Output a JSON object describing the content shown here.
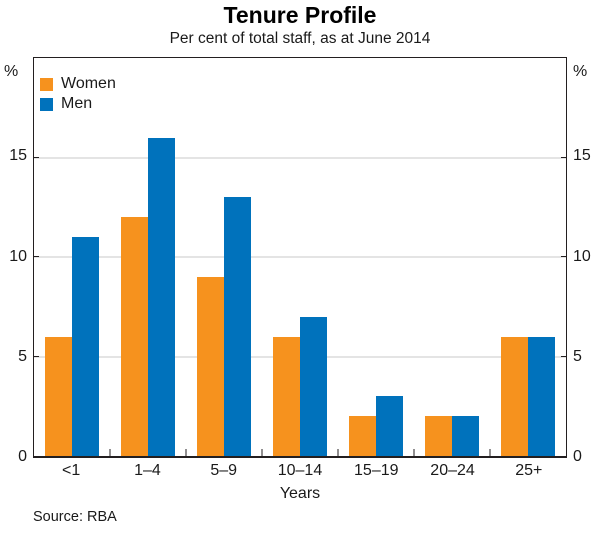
{
  "chart_data": {
    "type": "bar",
    "title": "Tenure Profile",
    "subtitle": "Per cent of total staff, as at June 2014",
    "categories": [
      "<1",
      "1–4",
      "5–9",
      "10–14",
      "15–19",
      "20–24",
      "25+"
    ],
    "series": [
      {
        "name": "Women",
        "color": "#F6921E",
        "values": [
          6,
          12,
          9,
          6,
          2,
          2,
          6
        ]
      },
      {
        "name": "Men",
        "color": "#0072BC",
        "values": [
          11,
          16,
          13,
          7,
          3,
          2,
          6
        ]
      }
    ],
    "xlabel": "Years",
    "ylabel": "%",
    "ylabel_left": "%",
    "ylabel_right": "%",
    "ylim": [
      0,
      20
    ],
    "yticks": [
      0,
      5,
      10,
      15
    ],
    "grid": true,
    "legend_position": "top-left",
    "source": "Source: RBA",
    "colors": {
      "gridline": "#C9C9C9",
      "frame": "#231F20",
      "text": "#1A1A1A",
      "background": "#FFFFFF"
    }
  }
}
